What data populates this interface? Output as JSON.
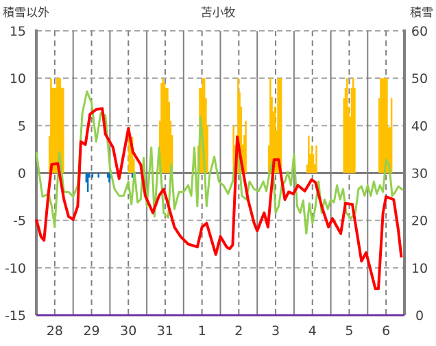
{
  "chart_data": {
    "type": "line",
    "title": "苫小牧",
    "ylabel_left": "積雪以外",
    "ylabel_right": "積雪",
    "ylim_left": [
      -15,
      15
    ],
    "yticks_left": [
      "15",
      "10",
      "5",
      "0",
      "-5",
      "-10",
      "-15"
    ],
    "ylim_right": [
      0,
      60
    ],
    "yticks_right": [
      "60",
      "50",
      "40",
      "30",
      "20",
      "10",
      "0"
    ],
    "right_axis_bar_base": 30,
    "x_unit": "hours since day 28 00:00",
    "xlim": [
      0,
      240
    ],
    "day_labels": [
      "28",
      "29",
      "30",
      "31",
      "1",
      "2",
      "3",
      "4",
      "5",
      "6"
    ],
    "grid": true,
    "colors": {
      "temperature": "#ff0000",
      "second_line": "#92d050",
      "snow_depth": "#ffc000",
      "blue_bars": "#0070c0",
      "bottom_line": "#7030a0",
      "grid": "#808080"
    },
    "series": [
      {
        "name": "red line",
        "axis": "left",
        "type": "line",
        "points": [
          [
            0,
            -4.9
          ],
          [
            3,
            -6.7
          ],
          [
            5,
            -7.1
          ],
          [
            8,
            -2
          ],
          [
            10,
            0.9
          ],
          [
            14,
            1
          ],
          [
            18,
            -2.8
          ],
          [
            21,
            -4.6
          ],
          [
            24,
            -4.9
          ],
          [
            27,
            -3.5
          ],
          [
            29,
            3.3
          ],
          [
            32,
            3
          ],
          [
            35,
            6.2
          ],
          [
            39,
            6.7
          ],
          [
            43,
            6.8
          ],
          [
            45,
            4.1
          ],
          [
            50,
            2.7
          ],
          [
            54,
            -0.6
          ],
          [
            59,
            3.8
          ],
          [
            60,
            4.7
          ],
          [
            63,
            2.2
          ],
          [
            68,
            0.9
          ],
          [
            71,
            -2.4
          ],
          [
            76,
            -4.2
          ],
          [
            80,
            -2.4
          ],
          [
            83,
            -1.7
          ],
          [
            85,
            -2.8
          ],
          [
            90,
            -5.7
          ],
          [
            94,
            -6.7
          ],
          [
            99,
            -7.5
          ],
          [
            105,
            -7.8
          ],
          [
            108,
            -5.7
          ],
          [
            111,
            -5.3
          ],
          [
            117,
            -8.6
          ],
          [
            120,
            -6.7
          ],
          [
            124,
            -7.8
          ],
          [
            126,
            -8
          ],
          [
            128,
            -7.6
          ],
          [
            131,
            3.8
          ],
          [
            133,
            1.8
          ],
          [
            138,
            -2.8
          ],
          [
            142,
            -5.3
          ],
          [
            144,
            -6.1
          ],
          [
            148.5,
            -4.2
          ],
          [
            151,
            -5.7
          ],
          [
            155,
            1.4
          ],
          [
            158,
            1.4
          ],
          [
            162,
            -2.8
          ],
          [
            164.5,
            -2
          ],
          [
            167.5,
            -2.2
          ],
          [
            170.5,
            -1.3
          ],
          [
            175,
            -1.9
          ],
          [
            179.5,
            -0.7
          ],
          [
            182,
            -1
          ],
          [
            186,
            -3.5
          ],
          [
            190.5,
            -5.7
          ],
          [
            193,
            -4.8
          ],
          [
            198.5,
            -6.4
          ],
          [
            201.5,
            -3.2
          ],
          [
            206,
            -3.3
          ],
          [
            212,
            -9.3
          ],
          [
            215,
            -8.4
          ],
          [
            217.5,
            -10
          ],
          [
            221,
            -12.2
          ],
          [
            223,
            -12.2
          ],
          [
            226,
            -4.2
          ],
          [
            228,
            -2.5
          ],
          [
            233,
            -2.8
          ],
          [
            236,
            -6
          ],
          [
            238,
            -8.9
          ]
        ]
      },
      {
        "name": "green line",
        "axis": "left",
        "type": "line",
        "points": [
          [
            0,
            2.2
          ],
          [
            2,
            -0.2
          ],
          [
            4,
            -2.5
          ],
          [
            8,
            -2.2
          ],
          [
            10,
            -3.5
          ],
          [
            12,
            -5.7
          ],
          [
            15,
            2.2
          ],
          [
            18,
            -2
          ],
          [
            21,
            -2
          ],
          [
            24,
            -2.5
          ],
          [
            27,
            -1.3
          ],
          [
            30,
            6.3
          ],
          [
            33,
            8.6
          ],
          [
            36,
            7.4
          ],
          [
            39,
            3.3
          ],
          [
            42,
            6.3
          ],
          [
            45,
            6.1
          ],
          [
            48,
            0.5
          ],
          [
            51,
            -1.7
          ],
          [
            54,
            -2.4
          ],
          [
            57,
            -2.4
          ],
          [
            60,
            -0.9
          ],
          [
            62,
            -3.3
          ],
          [
            64,
            0.1
          ],
          [
            66,
            -3.1
          ],
          [
            68,
            -2.8
          ],
          [
            70,
            1.6
          ],
          [
            72,
            -3.5
          ],
          [
            75,
            2.7
          ],
          [
            77,
            -4.6
          ],
          [
            80,
            2.7
          ],
          [
            83,
            -4.2
          ],
          [
            86,
            -4.7
          ],
          [
            88,
            0.9
          ],
          [
            90,
            -3.8
          ],
          [
            93,
            -2
          ],
          [
            96,
            -2
          ],
          [
            99,
            -1.3
          ],
          [
            101,
            -2.4
          ],
          [
            103,
            2.7
          ],
          [
            105,
            -3.5
          ],
          [
            107,
            5.9
          ],
          [
            109,
            2.3
          ],
          [
            111,
            -3.5
          ],
          [
            113,
            -0.2
          ],
          [
            116,
            1.7
          ],
          [
            119,
            -0.9
          ],
          [
            122,
            -1.3
          ],
          [
            125,
            -2.2
          ],
          [
            128,
            -0.9
          ],
          [
            130,
            1.7
          ],
          [
            132,
            1.9
          ],
          [
            134,
            -2.4
          ],
          [
            137,
            -2.8
          ],
          [
            139,
            -0.9
          ],
          [
            142,
            -1.7
          ],
          [
            145,
            -1.9
          ],
          [
            148,
            -0.9
          ],
          [
            150,
            -1.9
          ],
          [
            152,
            0
          ],
          [
            154,
            1.2
          ],
          [
            156,
            -4.2
          ],
          [
            158,
            -3.5
          ],
          [
            160,
            -1.3
          ],
          [
            162,
            -0.9
          ],
          [
            164,
            0.1
          ],
          [
            166,
            -1.3
          ],
          [
            168,
            2
          ],
          [
            170,
            -3.5
          ],
          [
            172,
            -4.2
          ],
          [
            174,
            -2.9
          ],
          [
            176,
            -6.4
          ],
          [
            178,
            -3.2
          ],
          [
            180,
            -5.3
          ],
          [
            182,
            -3.5
          ],
          [
            184,
            -0.9
          ],
          [
            186,
            -4.2
          ],
          [
            188,
            -2.8
          ],
          [
            190,
            -3.8
          ],
          [
            192,
            -2.8
          ],
          [
            194,
            -3.1
          ],
          [
            196,
            -1.3
          ],
          [
            198,
            -2.8
          ],
          [
            200,
            -1.7
          ],
          [
            202,
            -4.2
          ],
          [
            205,
            -4.8
          ],
          [
            208,
            -4.2
          ],
          [
            210,
            -1.7
          ],
          [
            212,
            -1.4
          ],
          [
            214,
            -2.4
          ],
          [
            216,
            -1.3
          ],
          [
            218,
            -2.4
          ],
          [
            220,
            -0.9
          ],
          [
            222,
            -2.2
          ],
          [
            224,
            -1.3
          ],
          [
            226,
            -2
          ],
          [
            228,
            1.4
          ],
          [
            230,
            0.9
          ],
          [
            232,
            -2.4
          ],
          [
            234,
            -2
          ],
          [
            236,
            -1.4
          ],
          [
            239,
            -1.8
          ]
        ]
      },
      {
        "name": "snow depth",
        "axis": "right",
        "type": "bar",
        "points": [
          [
            8,
            37.8
          ],
          [
            9,
            50
          ],
          [
            10,
            48
          ],
          [
            11,
            48
          ],
          [
            12,
            48
          ],
          [
            13,
            50
          ],
          [
            14,
            50
          ],
          [
            15,
            50
          ],
          [
            16,
            48
          ],
          [
            17,
            48
          ],
          [
            60,
            39.7
          ],
          [
            61,
            37.6
          ],
          [
            62,
            37.6
          ],
          [
            63,
            33
          ],
          [
            80,
            41
          ],
          [
            81,
            49
          ],
          [
            82,
            50
          ],
          [
            83,
            49
          ],
          [
            84,
            48
          ],
          [
            85,
            48
          ],
          [
            86,
            45
          ],
          [
            87,
            41
          ],
          [
            88,
            38
          ],
          [
            105,
            35.8
          ],
          [
            106,
            48
          ],
          [
            107,
            48
          ],
          [
            108,
            50
          ],
          [
            109,
            50
          ],
          [
            110,
            45.8
          ],
          [
            111,
            40
          ],
          [
            128,
            40
          ],
          [
            129,
            35.8
          ],
          [
            130,
            38
          ],
          [
            131,
            50
          ],
          [
            132,
            47
          ],
          [
            133,
            44
          ],
          [
            134,
            36
          ],
          [
            135,
            38
          ],
          [
            136,
            41
          ],
          [
            151,
            35.8
          ],
          [
            152,
            50
          ],
          [
            153,
            46
          ],
          [
            154,
            43
          ],
          [
            155,
            44
          ],
          [
            156,
            39
          ],
          [
            157,
            50
          ],
          [
            158,
            50
          ],
          [
            159,
            50
          ],
          [
            176,
            31.8
          ],
          [
            177,
            37.9
          ],
          [
            178,
            34
          ],
          [
            179,
            35.8
          ],
          [
            180,
            34
          ],
          [
            181,
            31.8
          ],
          [
            182,
            35.8
          ],
          [
            200,
            45.8
          ],
          [
            201,
            48
          ],
          [
            202,
            50
          ],
          [
            203,
            44
          ],
          [
            204,
            41.9
          ],
          [
            205,
            48
          ],
          [
            206,
            50
          ],
          [
            207,
            48
          ],
          [
            223,
            45.8
          ],
          [
            224,
            50
          ],
          [
            225,
            50
          ],
          [
            226,
            50
          ],
          [
            227,
            50
          ],
          [
            228,
            50
          ],
          [
            229,
            39.7
          ],
          [
            230,
            39.7
          ],
          [
            231,
            45.8
          ]
        ]
      },
      {
        "name": "blue bars",
        "axis": "left",
        "type": "bar",
        "points": [
          [
            32,
            -1
          ],
          [
            33,
            -2
          ],
          [
            34,
            -0.5
          ],
          [
            36,
            -0.5
          ],
          [
            40,
            -0.5
          ],
          [
            46,
            -0.5
          ],
          [
            47,
            -1
          ],
          [
            48,
            -0.5
          ],
          [
            62,
            -0.5
          ]
        ]
      },
      {
        "name": "bottom line",
        "axis": "left",
        "type": "line",
        "points": [
          [
            0,
            -15
          ],
          [
            240,
            -15
          ]
        ]
      }
    ]
  }
}
